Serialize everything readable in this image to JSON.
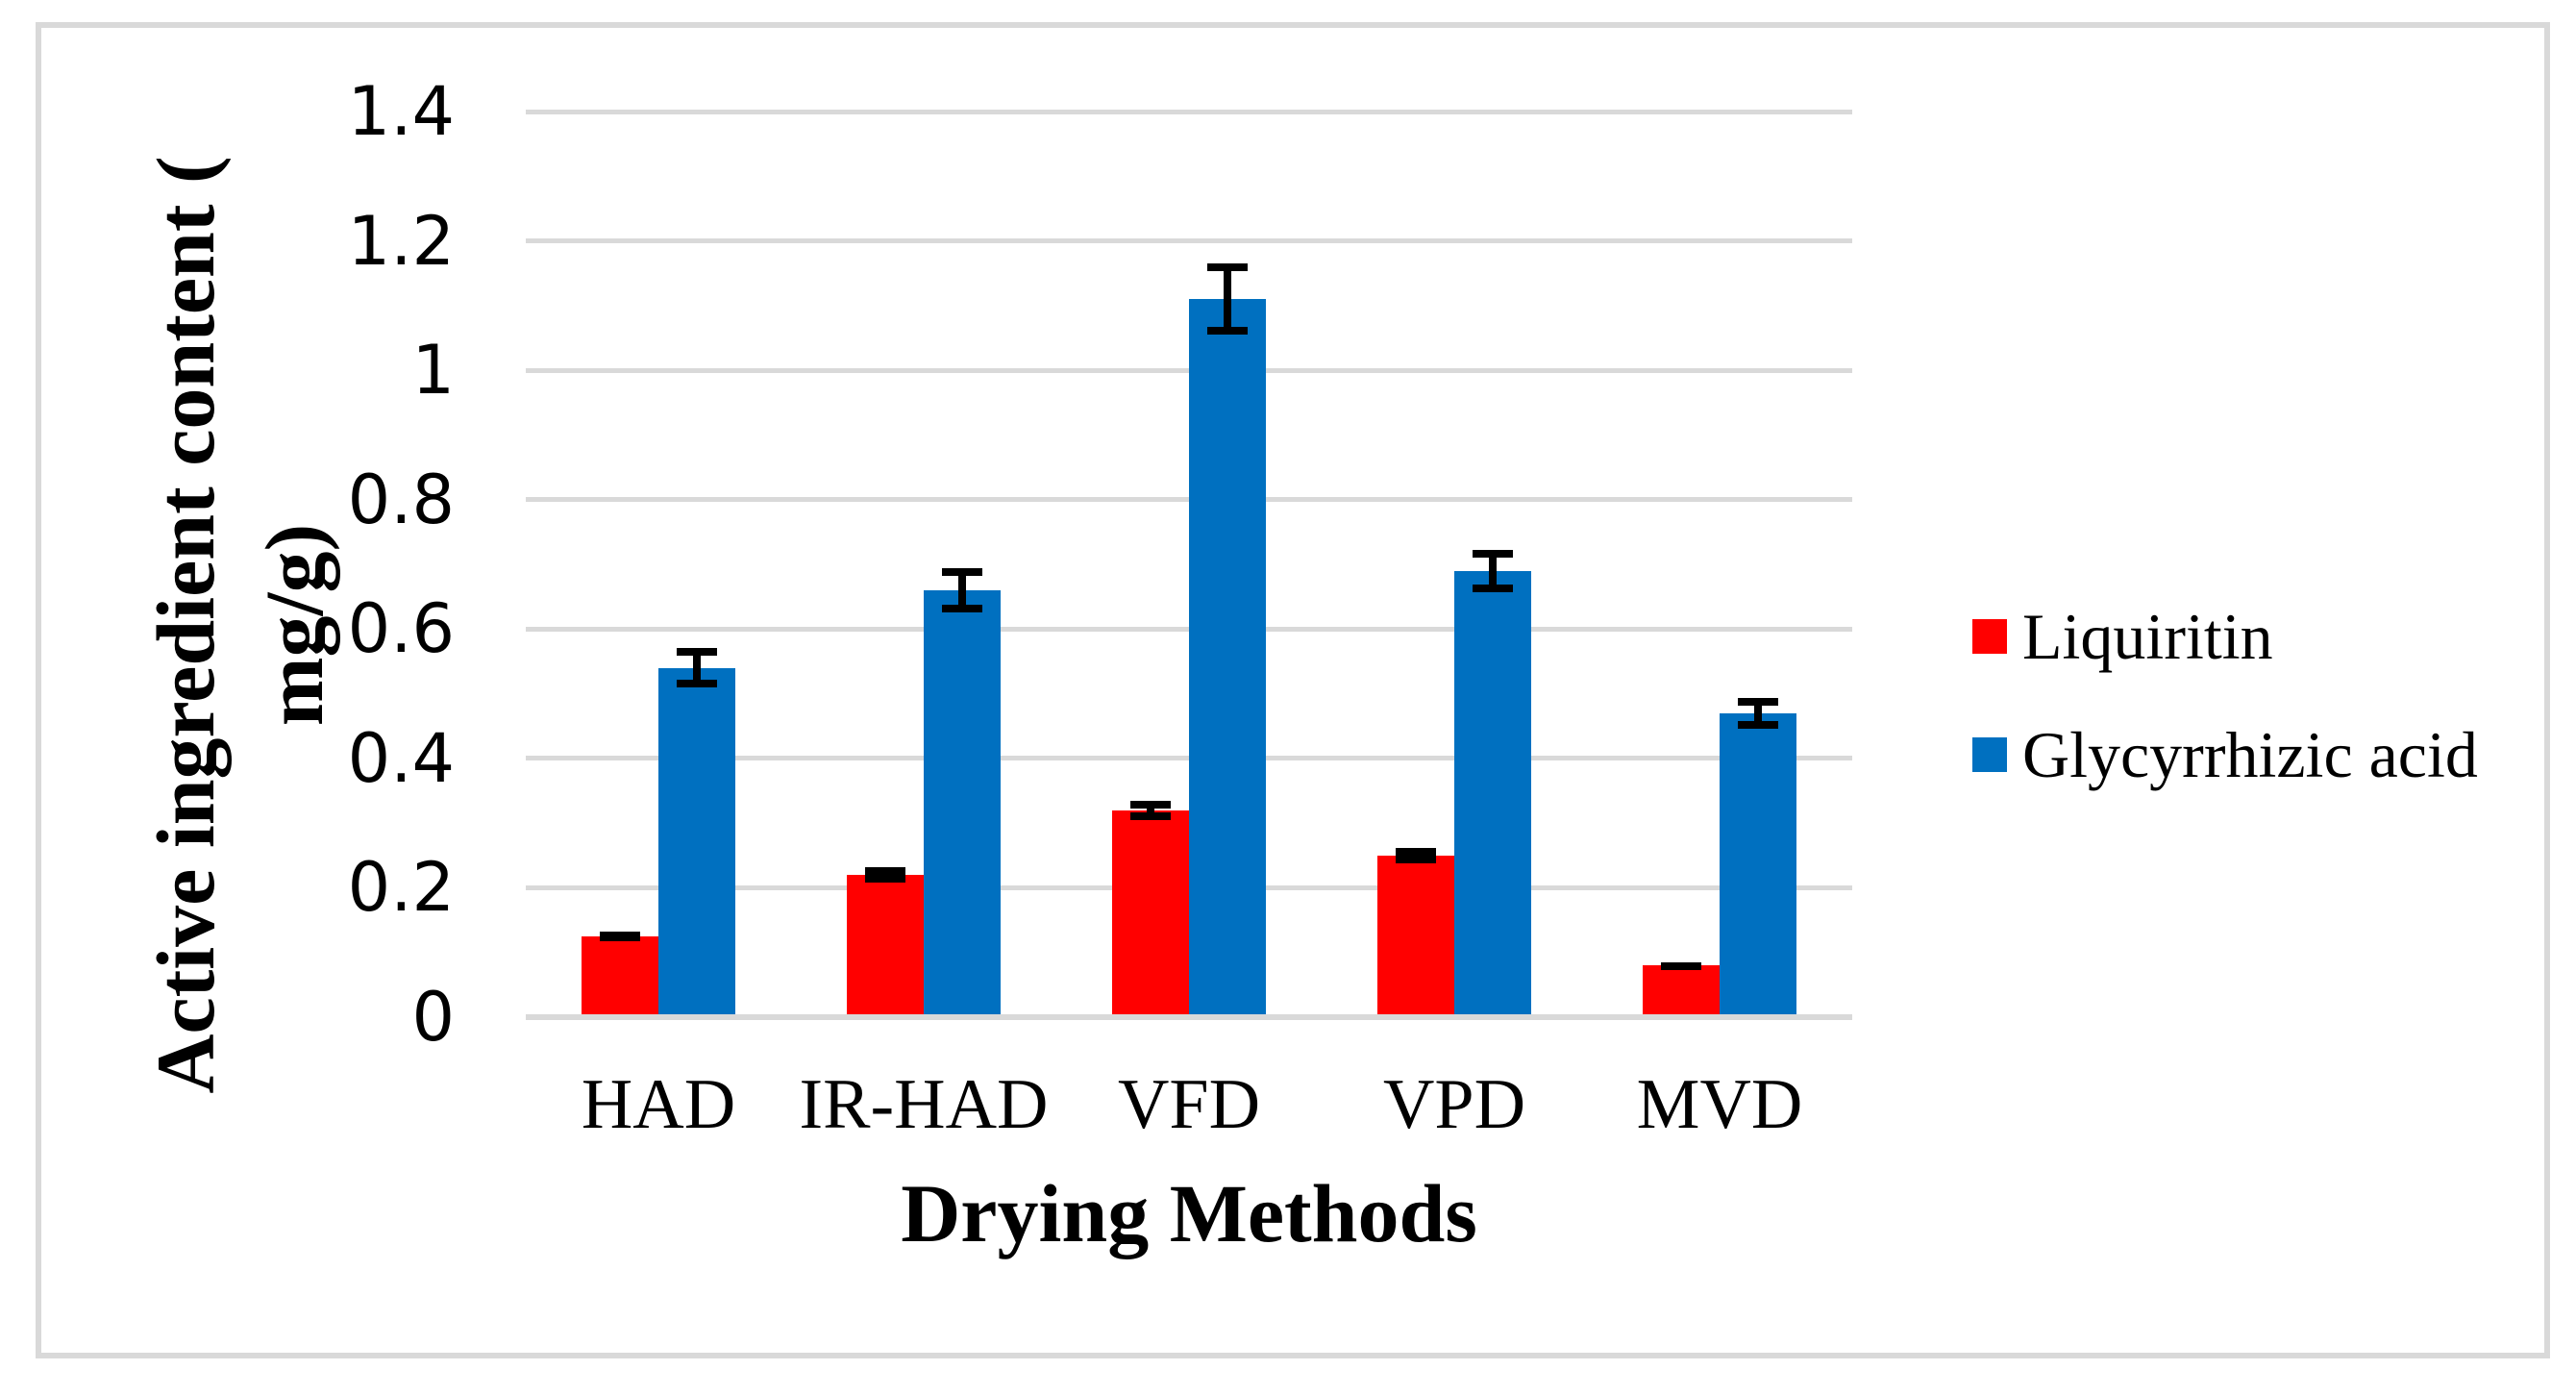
{
  "figure": {
    "background_color": "#FFFFFF",
    "frame_border_color": "#D9D9D9",
    "gridline_color": "#D9D9D9",
    "error_bar_color": "#000000"
  },
  "chart_data": {
    "type": "bar",
    "title": "",
    "xlabel": "Drying Methods",
    "ylabel": "Active ingredient content (mg/g)",
    "ylabel_line1": "Active ingredient content (",
    "ylabel_line2": "mg/g)",
    "categories": [
      "HAD",
      "IR-HAD",
      "VFD",
      "VPD",
      "MVD"
    ],
    "series": [
      {
        "name": "Liquiritin",
        "color": "#FF0000",
        "values": [
          0.125,
          0.22,
          0.32,
          0.25,
          0.08
        ],
        "errors": [
          0.008,
          0.012,
          0.015,
          0.012,
          0.005
        ]
      },
      {
        "name": "Glycyrrhizic acid",
        "color": "#0070C0",
        "values": [
          0.54,
          0.66,
          1.11,
          0.69,
          0.47
        ],
        "errors": [
          0.03,
          0.034,
          0.055,
          0.033,
          0.024
        ]
      }
    ],
    "ylim": [
      0,
      1.4
    ],
    "ytick_labels": [
      "1.4",
      "1.2",
      "1",
      "0.8",
      "0.6",
      "0.4",
      "0.2",
      "0"
    ],
    "grid": true,
    "error_bars": true,
    "legend_position": "right-center"
  }
}
